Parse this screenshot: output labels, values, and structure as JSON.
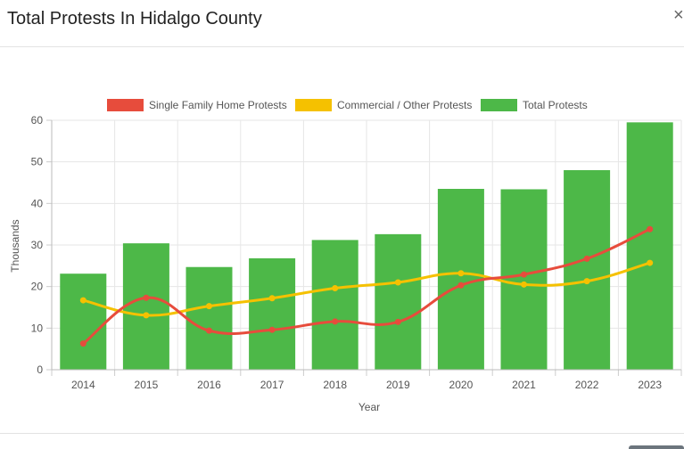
{
  "dialog": {
    "title": "Total Protests In Hidalgo County",
    "close_label": "×"
  },
  "chart_data": {
    "type": "bar",
    "categories": [
      "2014",
      "2015",
      "2016",
      "2017",
      "2018",
      "2019",
      "2020",
      "2021",
      "2022",
      "2023"
    ],
    "series": [
      {
        "name": "Single Family Home Protests",
        "type": "line",
        "color": "#e74c3c",
        "values": [
          6.3,
          17.3,
          9.4,
          9.6,
          11.6,
          11.5,
          20.3,
          22.9,
          26.7,
          33.8
        ]
      },
      {
        "name": "Commercial / Other Protests",
        "type": "line",
        "color": "#f5c100",
        "values": [
          16.7,
          13.1,
          15.3,
          17.2,
          19.6,
          21.0,
          23.2,
          20.5,
          21.3,
          25.7
        ]
      },
      {
        "name": "Total Protests",
        "type": "bar",
        "color": "#4db848",
        "values": [
          23.1,
          30.4,
          24.7,
          26.8,
          31.2,
          32.6,
          43.5,
          43.4,
          48.0,
          59.5
        ]
      }
    ],
    "yticks": [
      "0",
      "10",
      "20",
      "30",
      "40",
      "50",
      "60"
    ],
    "ylim": [
      0,
      60
    ],
    "xlabel": "Year",
    "ylabel": "Thousands",
    "legend_position": "top",
    "grid": true
  }
}
